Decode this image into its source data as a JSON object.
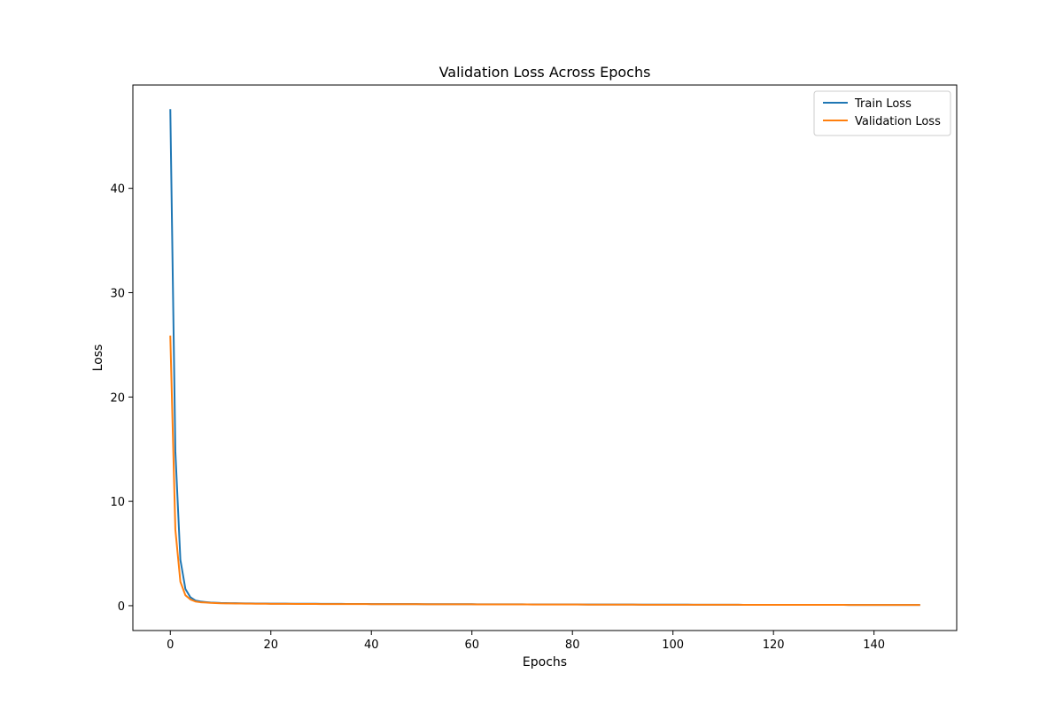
{
  "chart_data": {
    "type": "line",
    "title": "Validation Loss Across Epochs",
    "xlabel": "Epochs",
    "ylabel": "Loss",
    "xlim": [
      -7.45,
      156.45
    ],
    "ylim": [
      -2.38,
      49.9
    ],
    "xticks": [
      0,
      20,
      40,
      60,
      80,
      100,
      120,
      140
    ],
    "yticks": [
      0,
      10,
      20,
      30,
      40
    ],
    "grid": false,
    "legend_position": "top-right",
    "epoch_start": 0,
    "epoch_end": 149,
    "series": [
      {
        "name": "Train Loss",
        "color": "#1f77b4",
        "points": [
          [
            0,
            47.5
          ],
          [
            1,
            14.8
          ],
          [
            2,
            4.4
          ],
          [
            3,
            1.6
          ],
          [
            4,
            0.8
          ],
          [
            5,
            0.5
          ],
          [
            6,
            0.4
          ],
          [
            8,
            0.3
          ],
          [
            10,
            0.26
          ],
          [
            15,
            0.22
          ],
          [
            20,
            0.2
          ],
          [
            30,
            0.18
          ],
          [
            40,
            0.16
          ],
          [
            50,
            0.15
          ],
          [
            60,
            0.14
          ],
          [
            70,
            0.13
          ],
          [
            80,
            0.12
          ],
          [
            90,
            0.11
          ],
          [
            100,
            0.1
          ],
          [
            110,
            0.09
          ],
          [
            120,
            0.08
          ],
          [
            130,
            0.08
          ],
          [
            140,
            0.07
          ],
          [
            149,
            0.07
          ]
        ]
      },
      {
        "name": "Validation Loss",
        "color": "#ff7f0e",
        "points": [
          [
            0,
            25.8
          ],
          [
            1,
            7.3
          ],
          [
            2,
            2.3
          ],
          [
            3,
            1.0
          ],
          [
            4,
            0.6
          ],
          [
            5,
            0.4
          ],
          [
            6,
            0.33
          ],
          [
            8,
            0.27
          ],
          [
            10,
            0.23
          ],
          [
            15,
            0.2
          ],
          [
            20,
            0.18
          ],
          [
            30,
            0.16
          ],
          [
            40,
            0.15
          ],
          [
            50,
            0.14
          ],
          [
            60,
            0.13
          ],
          [
            70,
            0.12
          ],
          [
            80,
            0.11
          ],
          [
            90,
            0.1
          ],
          [
            100,
            0.09
          ],
          [
            110,
            0.09
          ],
          [
            120,
            0.08
          ],
          [
            130,
            0.08
          ],
          [
            140,
            0.07
          ],
          [
            149,
            0.07
          ]
        ]
      }
    ]
  }
}
